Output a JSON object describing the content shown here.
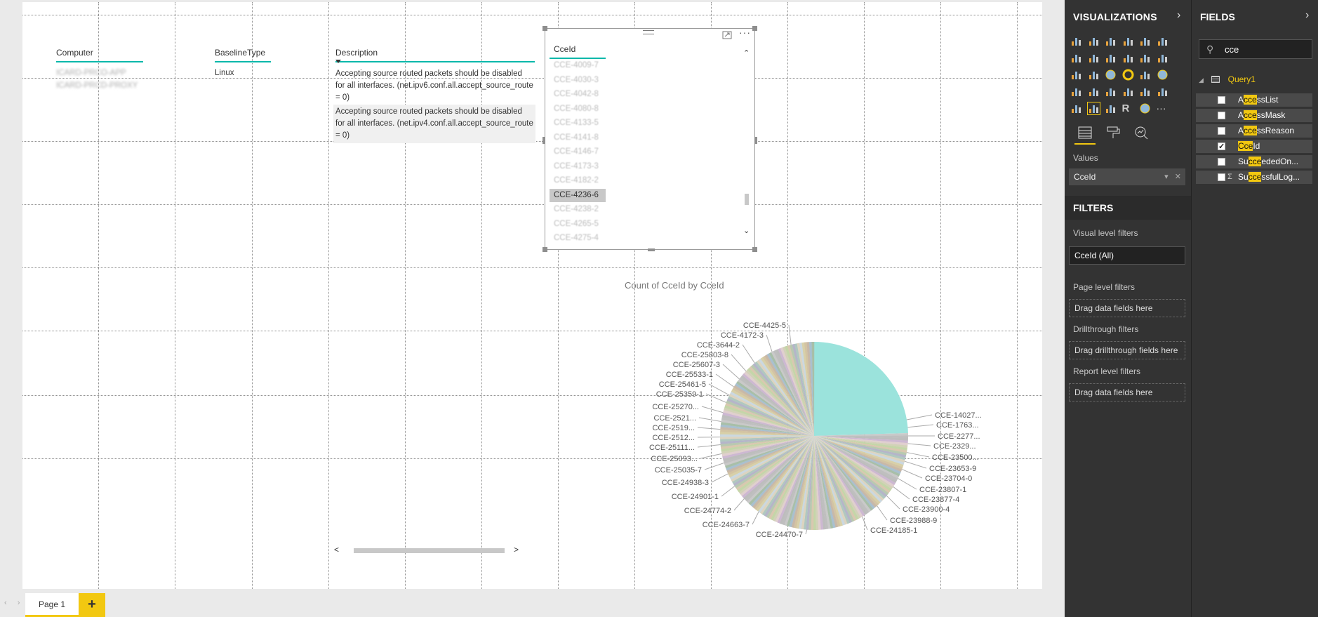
{
  "table": {
    "headers": [
      "Computer",
      "BaselineType",
      "Description"
    ],
    "computers": [
      "ICARD-PRCO-APP",
      "ICARD-PRCD-PROXY"
    ],
    "baseline_type": "Linux",
    "descriptions": [
      "Accepting source routed packets should be disabled for all interfaces. (net.ipv6.conf.all.accept_source_route = 0)",
      "Accepting source routed packets should be disabled for all interfaces. (net.ipv4.conf.all.accept_source_route = 0)"
    ]
  },
  "slicer": {
    "header": "CceId",
    "items": [
      "CCE-4009-7",
      "CCE-4030-3",
      "CCE-4042-8",
      "CCE-4080-8",
      "CCE-4133-5",
      "CCE-4141-8",
      "CCE-4146-7",
      "CCE-4173-3",
      "CCE-4182-2",
      "CCE-4236-6",
      "CCE-4238-2",
      "CCE-4265-5",
      "CCE-4275-4"
    ],
    "selected": "CCE-4236-6"
  },
  "chart_data": {
    "type": "pie",
    "title": "Count of CceId by CceId",
    "labels_left": [
      "CCE-4425-5",
      "CCE-4172-3",
      "CCE-3644-2",
      "CCE-25803-8",
      "CCE-25607-3",
      "CCE-25533-1",
      "CCE-25461-5",
      "CCE-25359-1",
      "CCE-25270...",
      "CCE-2521...",
      "CCE-2519...",
      "CCE-2512...",
      "CCE-25111...",
      "CCE-25093...",
      "CCE-25035-7",
      "CCE-24938-3",
      "CCE-24901-1",
      "CCE-24774-2",
      "CCE-24663-7",
      "CCE-24470-7"
    ],
    "labels_right": [
      "CCE-14027...",
      "CCE-1763...",
      "CCE-2277...",
      "CCE-2329...",
      "CCE-23500...",
      "CCE-23653-9",
      "CCE-23704-0",
      "CCE-23807-1",
      "CCE-23877-4",
      "CCE-23900-4",
      "CCE-23988-9",
      "CCE-24185-1"
    ],
    "dominant_slice_color": "#9be3dc"
  },
  "pages": {
    "tab": "Page 1",
    "add": "+"
  },
  "viz_pane": {
    "title": "VISUALIZATIONS",
    "values_label": "Values",
    "values_field": "CceId",
    "filters_title": "FILTERS",
    "visual_filters": "Visual level filters",
    "visual_filter_item": "CceId (All)",
    "page_filters": "Page level filters",
    "page_drop": "Drag data fields here",
    "drill_filters": "Drillthrough filters",
    "drill_drop": "Drag drillthrough fields here",
    "report_filters": "Report level filters",
    "report_drop": "Drag data fields here"
  },
  "fields_pane": {
    "title": "FIELDS",
    "search_value": "cce",
    "table_name": "Query1",
    "fields": [
      {
        "pre": "A",
        "hl": "cce",
        "post": "ssList",
        "checked": false,
        "sigma": false
      },
      {
        "pre": "A",
        "hl": "cce",
        "post": "ssMask",
        "checked": false,
        "sigma": false
      },
      {
        "pre": "A",
        "hl": "cce",
        "post": "ssReason",
        "checked": false,
        "sigma": false
      },
      {
        "pre": "",
        "hl": "Cce",
        "post": "Id",
        "checked": true,
        "sigma": false
      },
      {
        "pre": "Su",
        "hl": "cce",
        "post": "ededOn...",
        "checked": false,
        "sigma": false
      },
      {
        "pre": "Su",
        "hl": "cce",
        "post": "ssfulLog...",
        "checked": false,
        "sigma": true
      }
    ]
  }
}
